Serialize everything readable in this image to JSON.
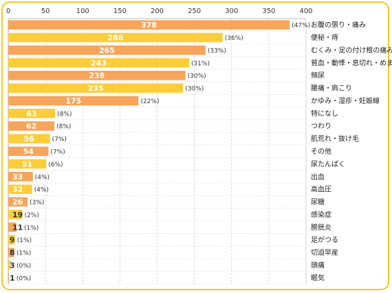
{
  "chart_data": {
    "type": "bar",
    "orientation": "horizontal",
    "title": "",
    "xlabel": "",
    "ylabel": "",
    "xlim": [
      0,
      400
    ],
    "x_ticks": [
      0,
      50,
      100,
      150,
      200,
      250,
      300,
      350,
      400
    ],
    "grid": "vertical dashed",
    "colors": {
      "orange": "#f7a55a",
      "yellow": "#fbcd3a",
      "border": "#f6c623"
    },
    "categories": [
      "お腹の張り・痛み",
      "便秘・痔",
      "むくみ・足の付け根の痛み",
      "貧血・動悸・息切れ・めまい",
      "頻尿",
      "腰痛・肩こり",
      "かゆみ・湿疹・妊娠線",
      "特になし",
      "つわり",
      "肌荒れ・抜け毛",
      "その他",
      "尿たんぱく",
      "出血",
      "高血圧",
      "尿糖",
      "感染症",
      "膀胱炎",
      "足がつる",
      "切迫早産",
      "頭痛",
      "眠気"
    ],
    "values": [
      378,
      288,
      265,
      243,
      238,
      235,
      175,
      63,
      62,
      56,
      54,
      51,
      33,
      32,
      26,
      19,
      11,
      9,
      8,
      3,
      1
    ],
    "percent_labels": [
      "(47%)",
      "(36%)",
      "(33%)",
      "(31%)",
      "(30%)",
      "(30%)",
      "(22%)",
      "(8%)",
      "(8%)",
      "(7%)",
      "(7%)",
      "(6%)",
      "(4%)",
      "(4%)",
      "(3%)",
      "(2%)",
      "(1%)",
      "(1%)",
      "(1%)",
      "(0%)",
      "(0%)"
    ]
  }
}
